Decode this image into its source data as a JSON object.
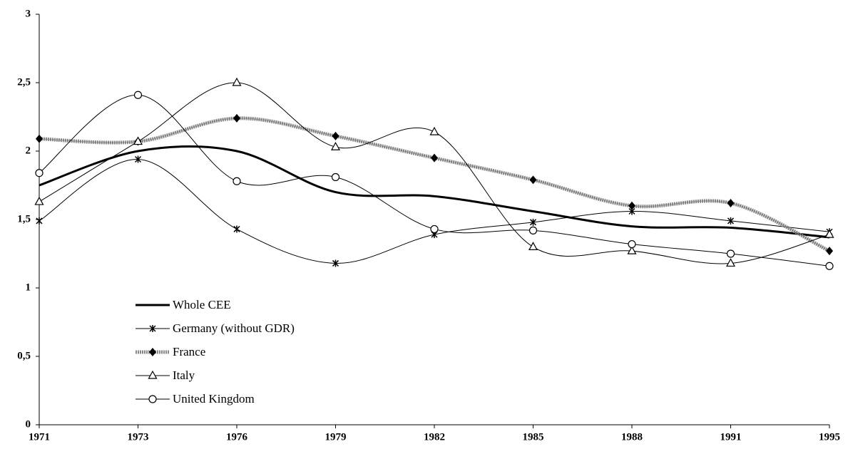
{
  "chart_data": {
    "type": "line",
    "categories": [
      "1971",
      "1973",
      "1976",
      "1979",
      "1982",
      "1985",
      "1988",
      "1991",
      "1995"
    ],
    "ylim": [
      0,
      3
    ],
    "yticks": [
      0,
      {
        "value": 0.5,
        "label": "0,5"
      },
      1,
      {
        "value": 1.5,
        "label": "1,5"
      },
      2,
      {
        "value": 2.5,
        "label": "2,5"
      },
      3
    ],
    "grid": false,
    "smooth": true,
    "legend": "lower left",
    "series": [
      {
        "name": "Whole CEE",
        "color": "#000000",
        "marker": "none",
        "line_width": 3,
        "values": [
          1.75,
          2.0,
          2.0,
          1.7,
          1.67,
          1.56,
          1.45,
          1.44,
          1.37
        ]
      },
      {
        "name": "Germany (without GDR)",
        "color": "#000000",
        "marker": "asterisk",
        "line_width": 1,
        "values": [
          1.49,
          1.94,
          1.43,
          1.18,
          1.39,
          1.48,
          1.56,
          1.49,
          1.41
        ]
      },
      {
        "name": "France",
        "color": "#8a8a8a",
        "marker": "diamond",
        "line_width": 5,
        "values": [
          2.09,
          2.07,
          2.24,
          2.11,
          1.95,
          1.79,
          1.6,
          1.62,
          1.27
        ]
      },
      {
        "name": "Italy",
        "color": "#000000",
        "marker": "triangle",
        "line_width": 1,
        "values": [
          1.63,
          2.07,
          2.5,
          2.03,
          2.14,
          1.3,
          1.27,
          1.18,
          1.39
        ]
      },
      {
        "name": "United Kingdom",
        "color": "#000000",
        "marker": "circle",
        "line_width": 1,
        "values": [
          1.84,
          2.41,
          1.78,
          1.81,
          1.43,
          1.42,
          1.32,
          1.25,
          1.16
        ]
      }
    ]
  }
}
